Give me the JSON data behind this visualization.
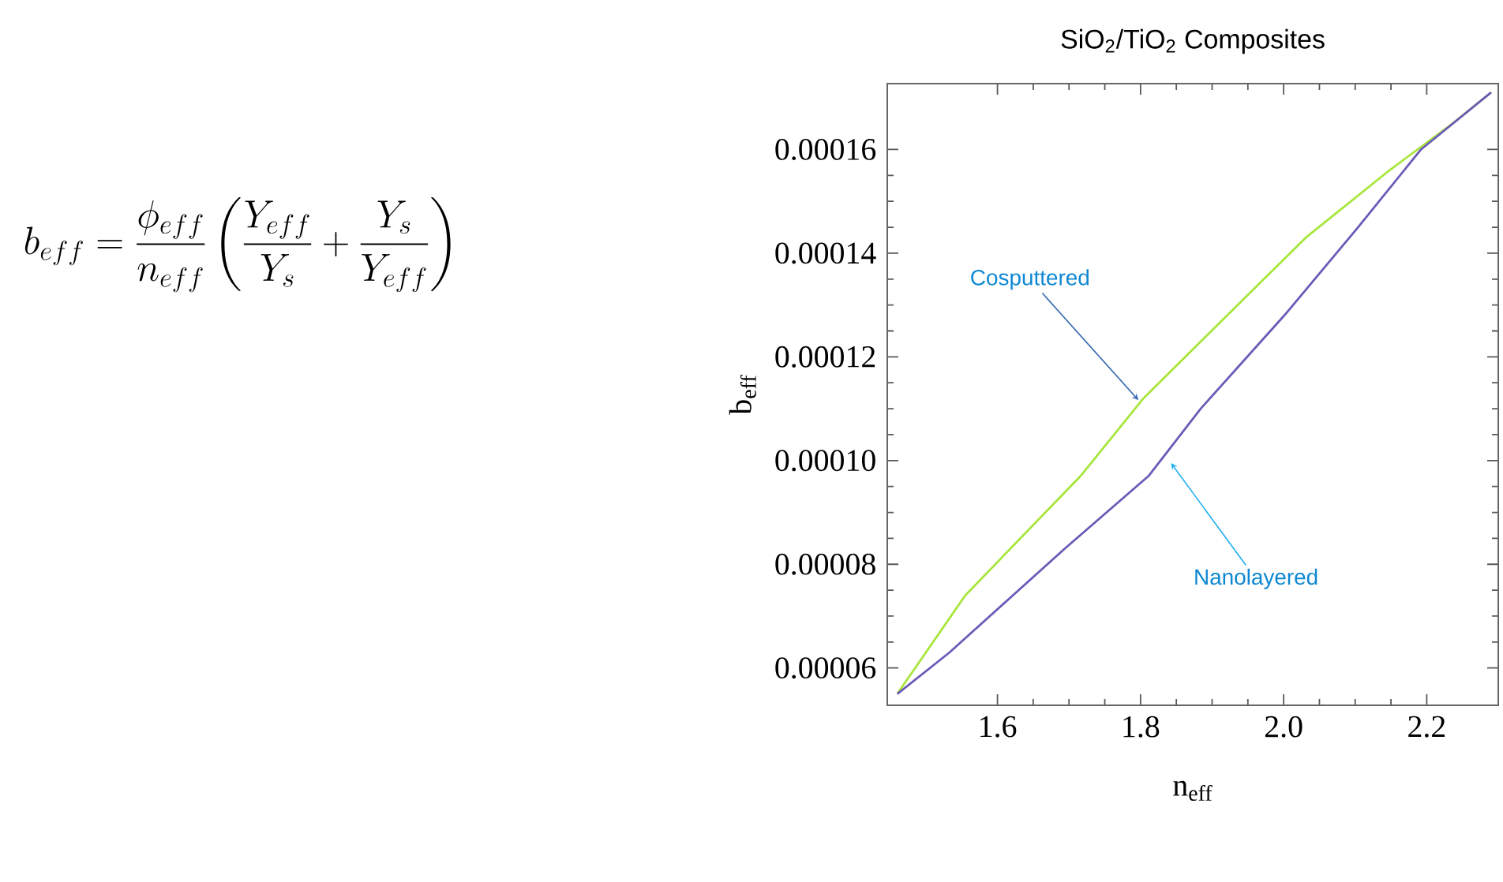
{
  "chart_data": {
    "type": "line",
    "title": "SiO$_{2}$/TiO$_{2}$ Composites",
    "xlabel": "n$_{eff}$",
    "ylabel": "b$_{eff}$",
    "series": [
      {
        "color": "#a8e63c",
        "x": [
          1.46,
          1.555,
          1.716,
          1.804,
          1.899,
          2.031,
          2.148,
          2.236,
          2.29
        ],
        "values": [
          5.5e-05,
          7.4e-05,
          9.7e-05,
          0.000112,
          0.000125,
          0.000143,
          0.000156,
          0.000165,
          0.000171
        ]
      },
      {
        "color": "#6b5bb8",
        "x": [
          1.46,
          1.533,
          1.694,
          1.811,
          1.884,
          2.001,
          2.104,
          2.192,
          2.29
        ],
        "values": [
          5.5e-05,
          6.3e-05,
          8.3e-05,
          9.7e-05,
          0.00011,
          0.000128,
          0.000145,
          0.00016,
          0.000171
        ]
      }
    ],
    "xlim": [
      1.446,
      2.3
    ],
    "ylim": [
      5.28e-05,
      0.0001727
    ],
    "xticks": [
      1.6,
      1.8,
      {
        "value": 2.0,
        "label": "2.0"
      },
      2.2
    ],
    "yticks": [
      {
        "value": 6e-05,
        "label": "0.00006"
      },
      {
        "value": 8e-05,
        "label": "0.00008"
      },
      {
        "value": 0.0001,
        "label": "0.00010"
      },
      {
        "value": 0.00012,
        "label": "0.00012"
      },
      {
        "value": 0.00014,
        "label": "0.00014"
      },
      {
        "value": 0.00016,
        "label": "0.00016"
      }
    ],
    "annotations": [
      "b_{eff} = \\frac{\\phi_{eff}}{n_{eff}}\\left(\\frac{Y_{eff}}{Y_s}+\\frac{Y_s}{Y_{eff}}\\right)",
      {
        "text": "Cosputtered",
        "x": 1.8,
        "y": 0.0001112
      },
      {
        "text": "Nanolayered",
        "x": 1.84,
        "y": 0.0001
      }
    ]
  }
}
